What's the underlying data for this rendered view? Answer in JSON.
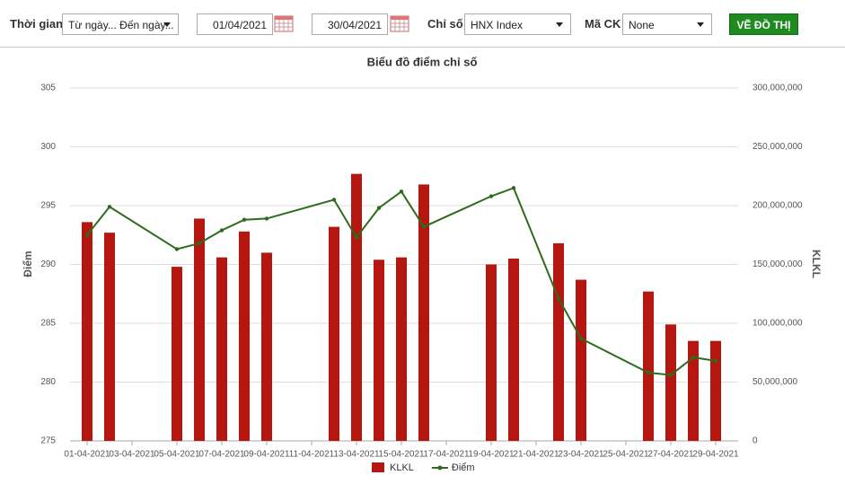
{
  "toolbar": {
    "time_label": "Thời gian",
    "time_select": "Từ ngày... Đến ngày...",
    "from_date": "01/04/2021",
    "to_date": "30/04/2021",
    "index_label": "Chỉ số",
    "index_select": "HNX Index",
    "code_label": "Mã CK",
    "code_select": "None",
    "draw_button": "VẼ ĐỒ THỊ"
  },
  "chart_data": {
    "type": "combo",
    "title": "Biểu đồ điểm chỉ số",
    "y_label": "Điểm",
    "y2_label": "KLKL",
    "x": [
      "01-04-2021",
      "02-04-2021",
      "05-04-2021",
      "06-04-2021",
      "07-04-2021",
      "08-04-2021",
      "09-04-2021",
      "12-04-2021",
      "13-04-2021",
      "14-04-2021",
      "15-04-2021",
      "16-04-2021",
      "19-04-2021",
      "20-04-2021",
      "22-04-2021",
      "23-04-2021",
      "26-04-2021",
      "27-04-2021",
      "28-04-2021",
      "29-04-2021"
    ],
    "xlim": [
      "31-03-2021",
      "30-04-2021"
    ],
    "xticks": [
      "01-04-2021",
      "03-04-2021",
      "05-04-2021",
      "07-04-2021",
      "09-04-2021",
      "11-04-2021",
      "13-04-2021",
      "15-04-2021",
      "17-04-2021",
      "19-04-2021",
      "21-04-2021",
      "23-04-2021",
      "25-04-2021",
      "27-04-2021",
      "29-04-2021"
    ],
    "ylim": [
      275,
      305
    ],
    "yticks": [
      275,
      280,
      285,
      290,
      295,
      300,
      305
    ],
    "y2lim": [
      0,
      300000000
    ],
    "y2ticks": [
      0,
      {
        "value": 50000000,
        "label": "50,000,000"
      },
      {
        "value": 100000000,
        "label": "100,000,000"
      },
      {
        "value": 150000000,
        "label": "150,000,000"
      },
      {
        "value": 200000000,
        "label": "200,000,000"
      },
      {
        "value": 250000000,
        "label": "250,000,000"
      },
      {
        "value": 300000000,
        "label": "300,000,000"
      }
    ],
    "grid": true,
    "legend": "bottom",
    "series": [
      {
        "name": "KLKL",
        "type": "bar",
        "axis": "y2",
        "color": "#b5160f",
        "values": [
          186000000,
          177000000,
          148000000,
          189000000,
          156000000,
          178000000,
          160000000,
          182000000,
          227000000,
          154000000,
          156000000,
          218000000,
          150000000,
          155000000,
          168000000,
          137000000,
          127000000,
          99000000,
          85000000,
          85000000
        ]
      },
      {
        "name": "Điểm",
        "type": "line",
        "axis": "y",
        "color": "#2e6b1e",
        "values": [
          292.5,
          294.9,
          291.3,
          291.8,
          292.9,
          293.8,
          293.9,
          295.5,
          292.3,
          294.8,
          296.2,
          293.2,
          295.8,
          296.5,
          287.1,
          283.7,
          280.8,
          280.6,
          282.1,
          281.8
        ]
      }
    ]
  }
}
